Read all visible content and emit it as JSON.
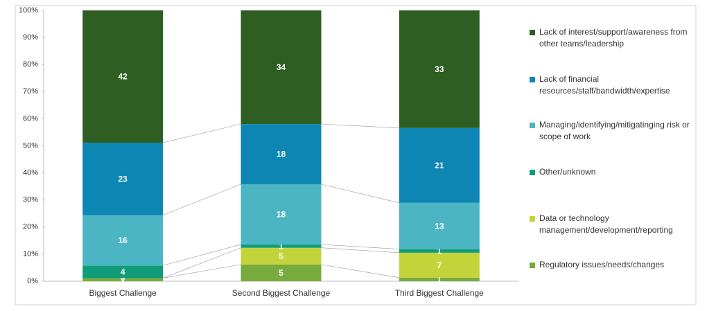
{
  "chart_data": {
    "type": "stacked_bar_100",
    "categories": [
      "Biggest Challenge",
      "Second Biggest Challenge",
      "Third Biggest Challenge"
    ],
    "series": [
      {
        "name": "Regulatory issues/needs/changes",
        "color": "#77ac3c",
        "values": [
          1,
          5,
          1
        ]
      },
      {
        "name": "Data or technology management/development/reporting",
        "color": "#c3d43b",
        "values": [
          0,
          5,
          7
        ]
      },
      {
        "name": "Other/unknown",
        "color": "#109c7a",
        "values": [
          4,
          1,
          1
        ]
      },
      {
        "name": "Managing/identifying/mitigatinging risk or scope of work",
        "color": "#4bb5c4",
        "values": [
          16,
          18,
          13
        ]
      },
      {
        "name": "Lack of financial resources/staff/bandwidth/expertise",
        "color": "#0e86b4",
        "values": [
          23,
          18,
          21
        ]
      },
      {
        "name": "Lack of interest/support/awareness from other teams/leadership",
        "color": "#2e5e22",
        "values": [
          42,
          34,
          33
        ]
      }
    ],
    "ylim": [
      0,
      100
    ],
    "yticks": [
      {
        "value": 0,
        "label": "0%"
      },
      {
        "value": 10,
        "label": "10%"
      },
      {
        "value": 20,
        "label": "20%"
      },
      {
        "value": 30,
        "label": "30%"
      },
      {
        "value": 40,
        "label": "40%"
      },
      {
        "value": 50,
        "label": "50%"
      },
      {
        "value": 60,
        "label": "60%"
      },
      {
        "value": 70,
        "label": "70%"
      },
      {
        "value": 80,
        "label": "80%"
      },
      {
        "value": 90,
        "label": "90%"
      },
      {
        "value": 100,
        "label": "100%"
      }
    ],
    "legend": "right"
  }
}
